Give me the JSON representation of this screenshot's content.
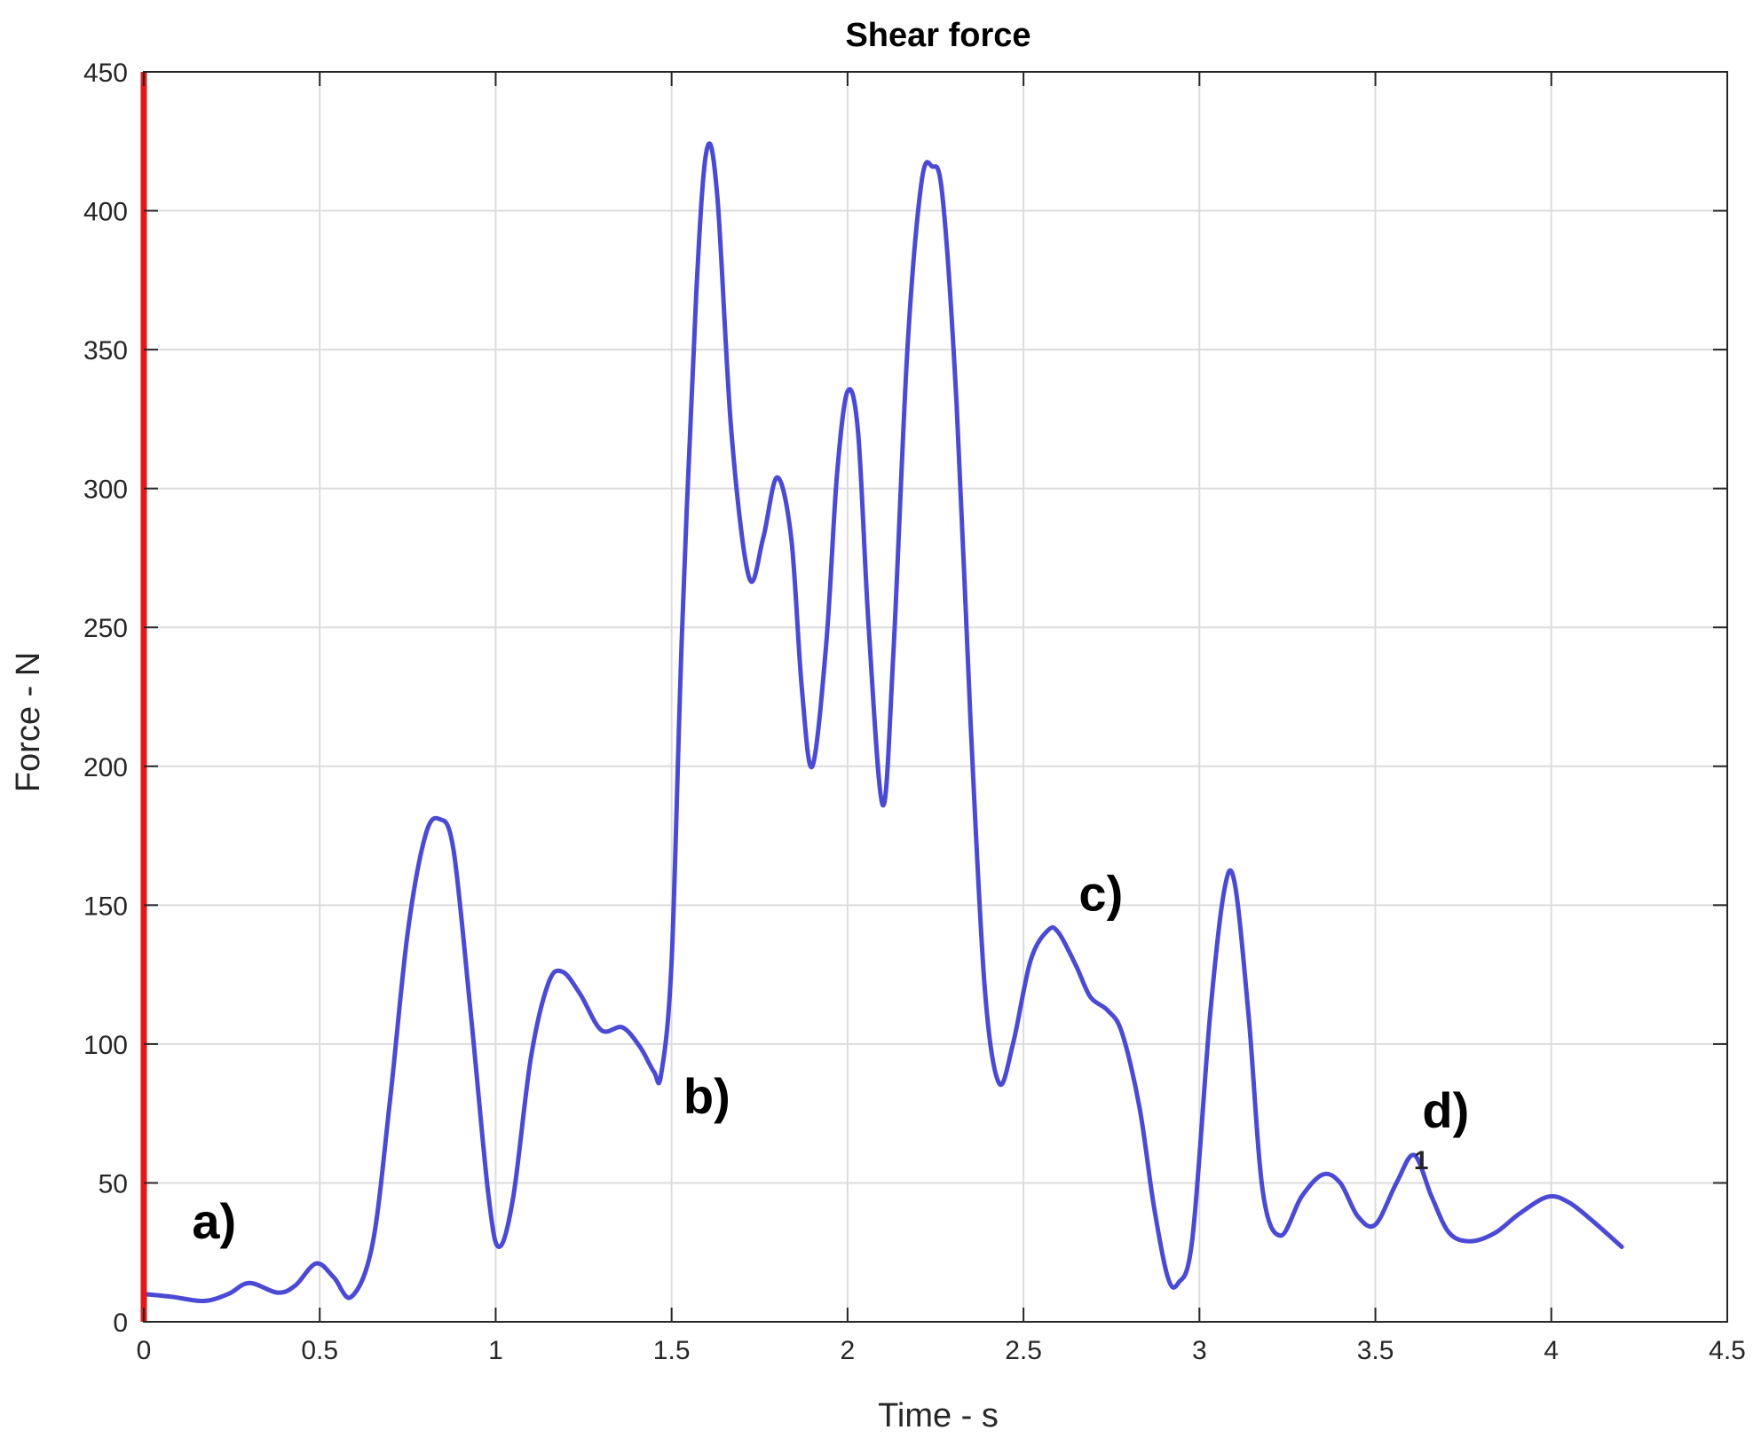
{
  "chart_data": {
    "type": "line",
    "title": "Shear force",
    "xlabel": "Time - s",
    "ylabel": "Force - N",
    "xlim": [
      0,
      4.5
    ],
    "ylim": [
      0,
      450
    ],
    "grid": true,
    "xticks": [
      {
        "value": 0,
        "label": "0"
      },
      {
        "value": 0.5,
        "label": "0.5"
      },
      {
        "value": 1,
        "label": "1"
      },
      {
        "value": 1.5,
        "label": "1.5"
      },
      {
        "value": 2,
        "label": "2"
      },
      {
        "value": 2.5,
        "label": "2.5"
      },
      {
        "value": 3,
        "label": "3"
      },
      {
        "value": 3.5,
        "label": "3.5"
      },
      {
        "value": 4,
        "label": "4"
      },
      {
        "value": 4.5,
        "label": "4.5"
      }
    ],
    "yticks": [
      {
        "value": 0,
        "label": "0"
      },
      {
        "value": 50,
        "label": "50"
      },
      {
        "value": 100,
        "label": "100"
      },
      {
        "value": 150,
        "label": "150"
      },
      {
        "value": 200,
        "label": "200"
      },
      {
        "value": 250,
        "label": "250"
      },
      {
        "value": 300,
        "label": "300"
      },
      {
        "value": 350,
        "label": "350"
      },
      {
        "value": 400,
        "label": "400"
      },
      {
        "value": 450,
        "label": "450"
      }
    ],
    "series": [
      {
        "color": "#4a4ad4",
        "points": [
          [
            0,
            10
          ],
          [
            0.08,
            9
          ],
          [
            0.17,
            7.5
          ],
          [
            0.24,
            10
          ],
          [
            0.3,
            14
          ],
          [
            0.38,
            10.5
          ],
          [
            0.43,
            13
          ],
          [
            0.49,
            21
          ],
          [
            0.54,
            16
          ],
          [
            0.59,
            9
          ],
          [
            0.65,
            28
          ],
          [
            0.7,
            80
          ],
          [
            0.75,
            140
          ],
          [
            0.8,
            175
          ],
          [
            0.84,
            181
          ],
          [
            0.88,
            170
          ],
          [
            0.93,
            110
          ],
          [
            0.98,
            45
          ],
          [
            1.01,
            27
          ],
          [
            1.05,
            45
          ],
          [
            1.1,
            95
          ],
          [
            1.15,
            122
          ],
          [
            1.19,
            126
          ],
          [
            1.24,
            118
          ],
          [
            1.3,
            105
          ],
          [
            1.36,
            106
          ],
          [
            1.41,
            99
          ],
          [
            1.45,
            90
          ],
          [
            1.47,
            89
          ],
          [
            1.5,
            130
          ],
          [
            1.53,
            250
          ],
          [
            1.57,
            370
          ],
          [
            1.6,
            422
          ],
          [
            1.63,
            405
          ],
          [
            1.67,
            320
          ],
          [
            1.72,
            268
          ],
          [
            1.76,
            282
          ],
          [
            1.8,
            304
          ],
          [
            1.84,
            282
          ],
          [
            1.87,
            228
          ],
          [
            1.9,
            200
          ],
          [
            1.94,
            245
          ],
          [
            1.97,
            305
          ],
          [
            2.0,
            335
          ],
          [
            2.03,
            320
          ],
          [
            2.06,
            250
          ],
          [
            2.1,
            186
          ],
          [
            2.13,
            240
          ],
          [
            2.17,
            350
          ],
          [
            2.21,
            410
          ],
          [
            2.24,
            416
          ],
          [
            2.27,
            405
          ],
          [
            2.31,
            330
          ],
          [
            2.35,
            215
          ],
          [
            2.39,
            120
          ],
          [
            2.43,
            86
          ],
          [
            2.47,
            100
          ],
          [
            2.52,
            130
          ],
          [
            2.57,
            141
          ],
          [
            2.6,
            140
          ],
          [
            2.65,
            128
          ],
          [
            2.69,
            117
          ],
          [
            2.74,
            112
          ],
          [
            2.78,
            104
          ],
          [
            2.83,
            77
          ],
          [
            2.87,
            42
          ],
          [
            2.91,
            16
          ],
          [
            2.94,
            14
          ],
          [
            2.98,
            30
          ],
          [
            3.03,
            110
          ],
          [
            3.07,
            155
          ],
          [
            3.1,
            158
          ],
          [
            3.14,
            110
          ],
          [
            3.18,
            47
          ],
          [
            3.23,
            31
          ],
          [
            3.29,
            45
          ],
          [
            3.35,
            53
          ],
          [
            3.4,
            50
          ],
          [
            3.45,
            38
          ],
          [
            3.5,
            35
          ],
          [
            3.56,
            50
          ],
          [
            3.61,
            60
          ],
          [
            3.66,
            45
          ],
          [
            3.71,
            32
          ],
          [
            3.77,
            29
          ],
          [
            3.84,
            32
          ],
          [
            3.91,
            39
          ],
          [
            3.99,
            45
          ],
          [
            4.05,
            43
          ],
          [
            4.12,
            36
          ],
          [
            4.2,
            27
          ]
        ]
      }
    ],
    "annotations": [
      {
        "text": "a)",
        "x": 0.2,
        "y": 30
      },
      {
        "text": "b)",
        "x": 1.6,
        "y": 75
      },
      {
        "text": "c)",
        "x": 2.72,
        "y": 148
      },
      {
        "text": "d)",
        "x": 3.7,
        "y": 70
      }
    ],
    "marker_label": {
      "text": "1",
      "x": 3.63,
      "y": 55
    }
  }
}
